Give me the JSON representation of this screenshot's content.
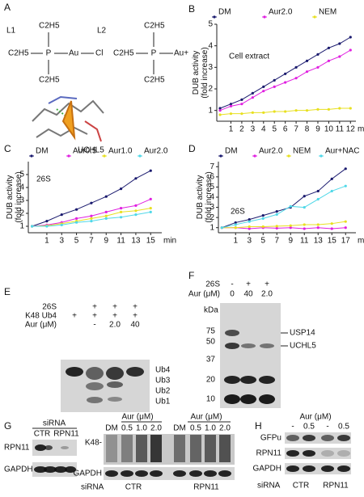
{
  "chart_data": [
    {
      "type": "line",
      "panel": "B",
      "y_label": [
        "DUB activity",
        "(fold increase)"
      ],
      "x_label": "min",
      "annotation": "Cell extract",
      "x": [
        0,
        1,
        2,
        3,
        4,
        5,
        6,
        7,
        8,
        9,
        10,
        11,
        12
      ],
      "xlim": [
        -0.3,
        12.5
      ],
      "xticks": [
        1,
        2,
        3,
        4,
        5,
        6,
        7,
        8,
        9,
        10,
        11,
        12
      ],
      "ylim": [
        0.5,
        5
      ],
      "yticks": [
        1,
        2,
        3,
        4,
        5
      ],
      "series": [
        {
          "name": "DM",
          "color": "#1a1a6e",
          "values": [
            1.1,
            1.3,
            1.5,
            1.8,
            2.1,
            2.4,
            2.7,
            3.0,
            3.3,
            3.6,
            3.9,
            4.1,
            4.4
          ]
        },
        {
          "name": "Aur2.0",
          "color": "#e020e0",
          "values": [
            1.0,
            1.2,
            1.3,
            1.6,
            1.9,
            2.1,
            2.3,
            2.5,
            2.8,
            3.0,
            3.3,
            3.5,
            3.8
          ]
        },
        {
          "name": "NEM",
          "color": "#e8e020",
          "values": [
            0.8,
            0.85,
            0.85,
            0.9,
            0.9,
            0.95,
            0.95,
            1.0,
            1.0,
            1.05,
            1.05,
            1.1,
            1.1
          ]
        }
      ]
    },
    {
      "type": "line",
      "panel": "C",
      "y_label": [
        "DUB activity",
        "(fold increase)"
      ],
      "x_label": "min",
      "annotation": "26S",
      "x": [
        -1,
        1,
        3,
        5,
        7,
        9,
        11,
        13,
        15
      ],
      "xlim": [
        -1.5,
        16.5
      ],
      "xticks": [
        1,
        3,
        5,
        7,
        9,
        11,
        13,
        15
      ],
      "ylim": [
        0.5,
        6
      ],
      "yticks": [
        1,
        2,
        3,
        4,
        5
      ],
      "series": [
        {
          "name": "DM",
          "color": "#1a1a6e",
          "values": [
            1,
            1.4,
            1.9,
            2.3,
            2.8,
            3.3,
            3.9,
            4.7,
            5.3
          ]
        },
        {
          "name": "Aur0.5",
          "color": "#e020e0",
          "values": [
            1,
            1.1,
            1.3,
            1.6,
            1.8,
            2.1,
            2.4,
            2.6,
            3.1
          ]
        },
        {
          "name": "Aur1.0",
          "color": "#e8e020",
          "values": [
            1,
            1.05,
            1.2,
            1.4,
            1.6,
            1.8,
            2.1,
            2.2,
            2.4
          ]
        },
        {
          "name": "Aur2.0",
          "color": "#50d8e8",
          "values": [
            1,
            1.0,
            1.1,
            1.3,
            1.4,
            1.6,
            1.7,
            1.9,
            2.1
          ]
        }
      ]
    },
    {
      "type": "line",
      "panel": "D",
      "y_label": [
        "DUB activity",
        "(fold increase)"
      ],
      "x_label": "min",
      "annotation": "26S",
      "x": [
        -1,
        1,
        3,
        5,
        7,
        9,
        11,
        13,
        15,
        17
      ],
      "xlim": [
        -1.5,
        18.5
      ],
      "xticks": [
        1,
        3,
        5,
        7,
        9,
        11,
        13,
        15,
        17
      ],
      "ylim": [
        0.5,
        7.5
      ],
      "yticks": [
        1,
        2,
        3,
        4,
        5,
        6,
        7
      ],
      "series": [
        {
          "name": "DM",
          "color": "#1a1a6e",
          "values": [
            1,
            1.5,
            1.8,
            2.2,
            2.6,
            3.0,
            4.1,
            4.6,
            5.8,
            6.8
          ]
        },
        {
          "name": "Aur2.0",
          "color": "#e020e0",
          "values": [
            1,
            1.0,
            0.9,
            1.0,
            0.95,
            1.0,
            0.9,
            1.0,
            0.9,
            1.0
          ]
        },
        {
          "name": "NEM",
          "color": "#e8e020",
          "values": [
            1,
            1.0,
            1.1,
            1.1,
            1.15,
            1.2,
            1.3,
            1.3,
            1.4,
            1.6
          ]
        },
        {
          "name": "Aur+NAC",
          "color": "#50d8e8",
          "values": [
            1,
            1.3,
            1.6,
            1.9,
            2.3,
            3.1,
            3.0,
            3.8,
            4.6,
            5.1
          ]
        }
      ]
    }
  ],
  "panel_a": {
    "label": "A",
    "ligands": [
      {
        "name": "L1",
        "top": "C2H5",
        "left": "C2H5",
        "center": "P",
        "metal": "Au",
        "right": "Cl",
        "bottom": "C2H5"
      },
      {
        "name": "L2",
        "top": "C2H5",
        "left": "C2H5",
        "center": "P",
        "metal": "Au+",
        "bottom": "C2H5"
      }
    ],
    "protein": "UCHL5"
  },
  "panel_e": {
    "label": "E",
    "rows": [
      {
        "name": "26S",
        "lanes": [
          null,
          "+",
          "+",
          "+"
        ]
      },
      {
        "name": "K48 Ub4",
        "lanes": [
          "+",
          "+",
          "+",
          "+"
        ]
      },
      {
        "name": "Aur (μM)",
        "lanes": [
          null,
          "-",
          "2.0",
          "40"
        ]
      }
    ],
    "bands": [
      "Ub4",
      "Ub3",
      "Ub2",
      "Ub1"
    ]
  },
  "panel_f": {
    "label": "F",
    "rows": [
      {
        "name": "26S",
        "lanes": [
          "-",
          "+",
          "+"
        ]
      },
      {
        "name": "Aur (μM)",
        "lanes": [
          "0",
          "40",
          "2.0"
        ]
      }
    ],
    "unit": "kDa",
    "markers": [
      "75",
      "50",
      "37",
      "20",
      "10"
    ],
    "bands": [
      "USP14",
      "UCHL5"
    ]
  },
  "panel_g": {
    "label": "G",
    "left": {
      "header": "siRNA",
      "groups": [
        "CTR",
        "RPN11"
      ],
      "rows": [
        "RPN11",
        "GAPDH"
      ]
    },
    "right": {
      "treatment": [
        "Aur (μM)",
        "Aur (μM)"
      ],
      "lanes": [
        "DM",
        "0.5",
        "1.0",
        "2.0",
        "DM",
        "0.5",
        "1.0",
        "2.0"
      ],
      "rows": [
        "K48-",
        "GAPDH"
      ],
      "footer": "siRNA",
      "groups": [
        "CTR",
        "RPN11"
      ]
    }
  },
  "panel_h": {
    "label": "H",
    "treatment": "Aur (μM)",
    "lanes": [
      "-",
      "0.5",
      "-",
      "0.5"
    ],
    "rows": [
      "GFPu",
      "RPN11",
      "GAPDH"
    ],
    "footer": "siRNA",
    "groups": [
      "CTR",
      "RPN11"
    ]
  }
}
